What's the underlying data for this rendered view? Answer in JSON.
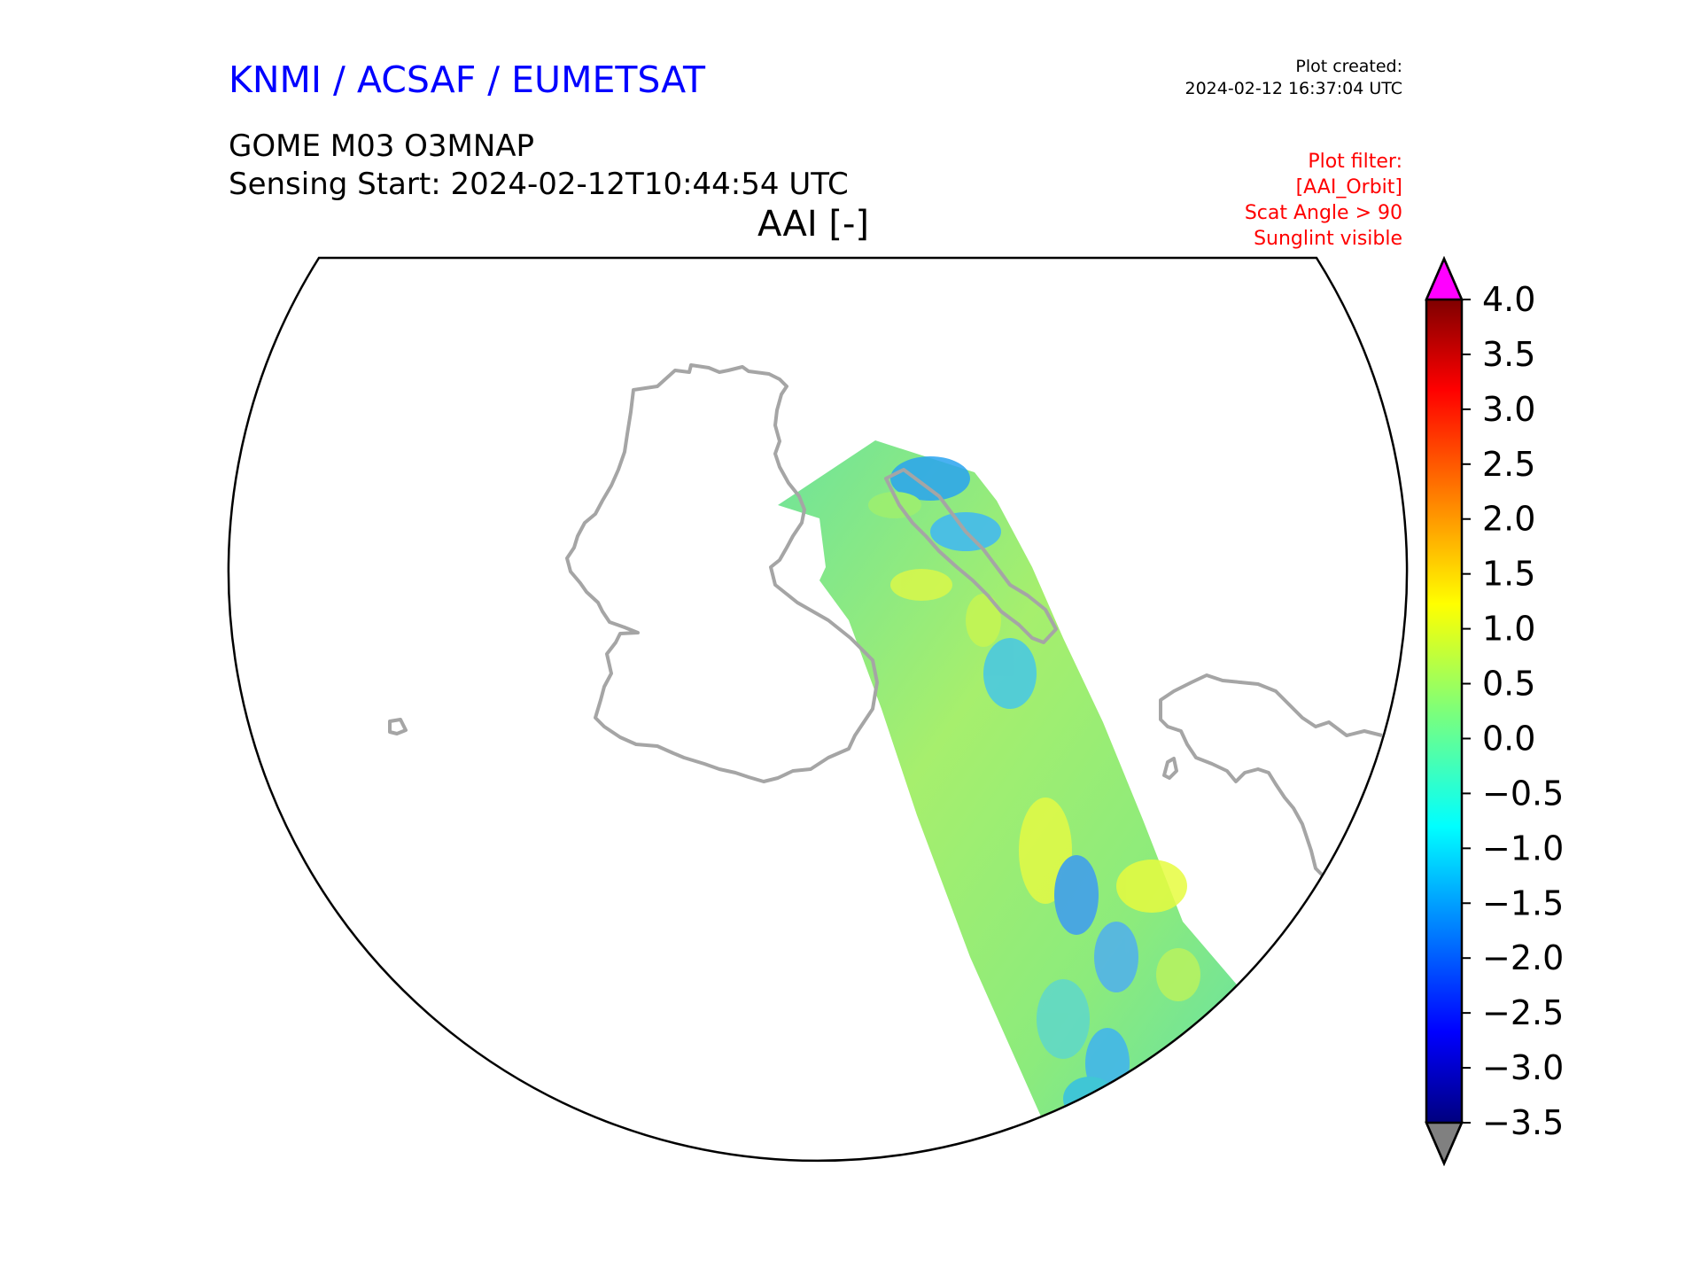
{
  "header": {
    "agency": "KNMI / ACSAF / EUMETSAT",
    "created_label": "Plot created:",
    "created_time": "2024-02-12 16:37:04 UTC",
    "product": "GOME M03 O3MNAP",
    "sensing_start": "Sensing Start: 2024-02-12T10:44:54 UTC",
    "variable_title": "AAI [-]"
  },
  "filters": {
    "title": "Plot filter:",
    "items": [
      "[AAI_Orbit]",
      "Scat Angle > 90",
      "Sunglint visible"
    ]
  },
  "map": {
    "projection": "polar-stereographic",
    "coastline_color": "#a0a0a0",
    "swath": "GOME-2 orbit swath, AAI values mostly -1.0 to 1.5"
  },
  "chart_data": {
    "type": "heatmap",
    "title": "AAI [-]",
    "colormap": "jet",
    "colorbar": {
      "min": -3.5,
      "max": 4.0,
      "ticks": [
        "4.0",
        "3.5",
        "3.0",
        "2.5",
        "2.0",
        "1.5",
        "1.0",
        "0.5",
        "0.0",
        "−0.5",
        "−1.0",
        "−1.5",
        "−2.0",
        "−2.5",
        "−3.0",
        "−3.5"
      ],
      "over_color": "#ff00ff",
      "under_color": "#808080",
      "extend": "both"
    }
  }
}
